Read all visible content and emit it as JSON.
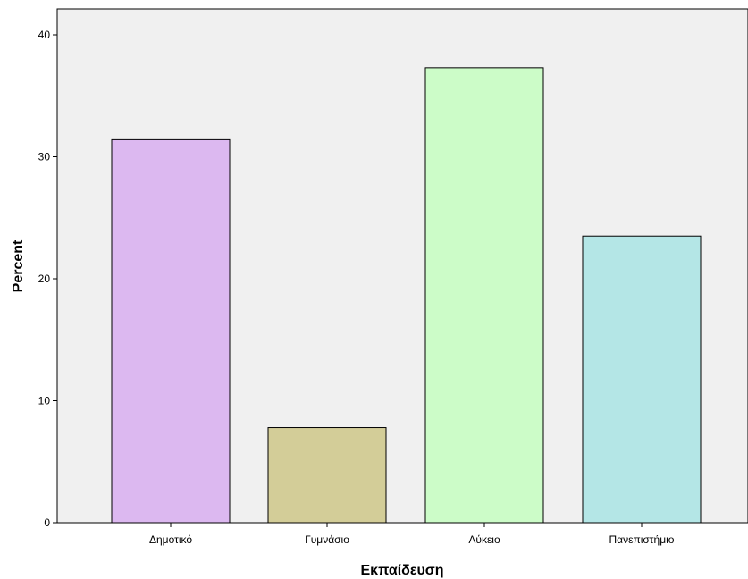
{
  "chart_data": {
    "type": "bar",
    "title": "",
    "xlabel": "Εκπαίδευση",
    "ylabel": "Percent",
    "categories": [
      "Δημοτικό",
      "Γυμνάσιο",
      "Λύκειο",
      "Πανεπιστήμιο"
    ],
    "values": [
      31.4,
      7.8,
      37.3,
      23.5
    ],
    "colors": [
      "#dcb8f0",
      "#d3cd98",
      "#ccfcc8",
      "#b4e6e6"
    ],
    "ylim": [
      0,
      40
    ],
    "yticks": [
      0,
      10,
      20,
      30,
      40
    ],
    "grid": false,
    "plot_background": "#f0f0f0"
  }
}
